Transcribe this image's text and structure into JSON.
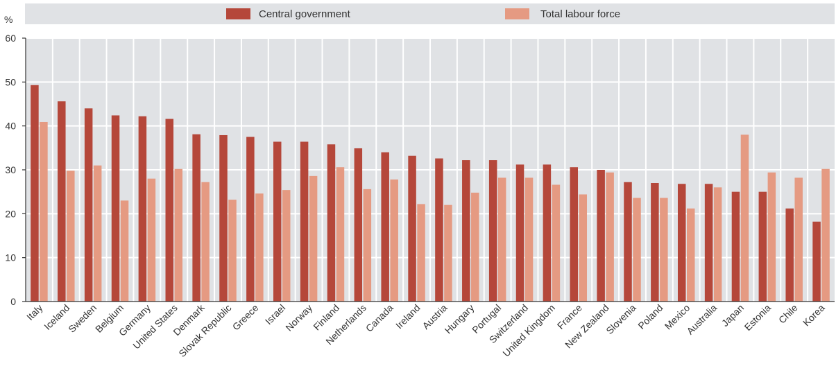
{
  "chart_data": {
    "type": "bar",
    "ylabel": "%",
    "ylim": [
      0,
      60
    ],
    "yticks": [
      "0",
      "10",
      "20",
      "30",
      "40",
      "50",
      "60"
    ],
    "grid": true,
    "legend_position": "top",
    "categories": [
      "Italy",
      "Iceland",
      "Sweden",
      "Belgium",
      "Germany",
      "United States",
      "Denmark",
      "Slovak Republic",
      "Greece",
      "Israel",
      "Norway",
      "Finland",
      "Netherlands",
      "Canada",
      "Ireland",
      "Austria",
      "Hungary",
      "Portugal",
      "Switzerland",
      "United Kingdom",
      "France",
      "New Zealand",
      "Slovenia",
      "Poland",
      "Mexico",
      "Australia",
      "Japan",
      "Estonia",
      "Chile",
      "Korea"
    ],
    "series": [
      {
        "name": "Central government",
        "color": "#b5473a",
        "values": [
          49.3,
          45.6,
          44.0,
          42.4,
          42.2,
          41.6,
          38.1,
          37.9,
          37.5,
          36.4,
          36.4,
          35.8,
          34.9,
          34.0,
          33.2,
          32.6,
          32.2,
          32.2,
          31.2,
          31.2,
          30.6,
          30.0,
          27.2,
          27.0,
          26.8,
          26.8,
          25.0,
          25.0,
          21.2,
          18.2
        ]
      },
      {
        "name": "Total labour force",
        "color": "#e59a82",
        "values": [
          40.9,
          29.8,
          31.0,
          23.0,
          28.0,
          30.2,
          27.2,
          23.2,
          24.6,
          25.4,
          28.6,
          30.6,
          25.6,
          27.8,
          22.2,
          22.0,
          24.8,
          28.2,
          28.2,
          26.6,
          24.4,
          29.4,
          23.6,
          23.6,
          21.2,
          26.0,
          38.0,
          29.4,
          28.2,
          30.2
        ]
      }
    ]
  }
}
